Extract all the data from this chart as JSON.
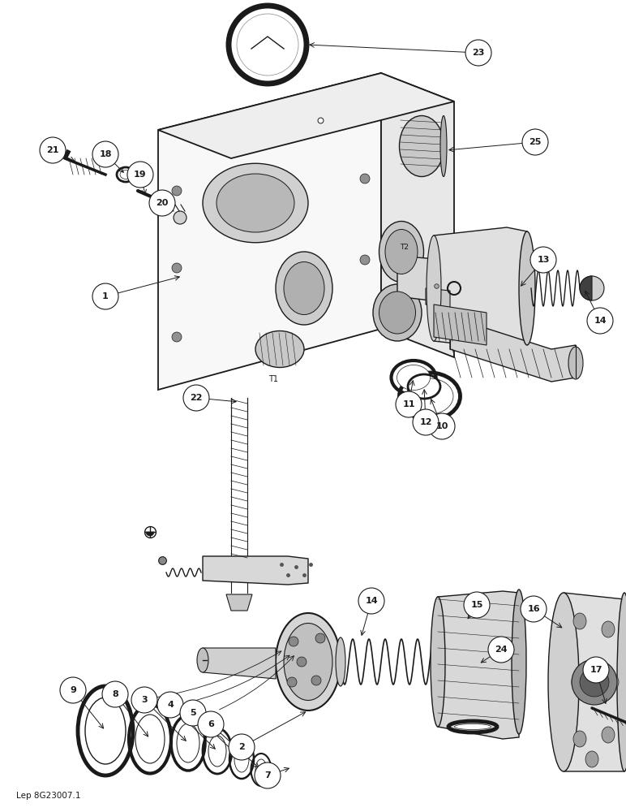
{
  "background_color": "#ffffff",
  "fig_width": 7.72,
  "fig_height": 10.0,
  "dpi": 100,
  "footer_text": "Lep 8G23007.1",
  "black": "#1a1a1a",
  "gray_light": "#f5f5f5",
  "gray_mid": "#e0e0e0",
  "gray_dark": "#b0b0b0"
}
